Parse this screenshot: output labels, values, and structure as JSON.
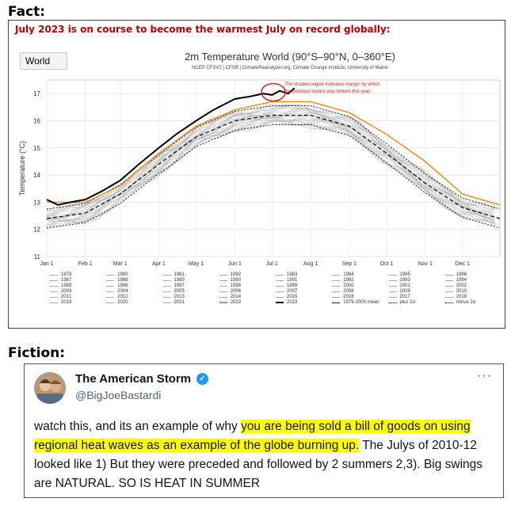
{
  "fact_label": "Fact:",
  "fiction_label": "Fiction:",
  "chart_panel": {
    "headline": "July 2023 is on course to become the warmest July on record globally:",
    "region_select": "World",
    "title": "2m Temperature World (90°S–90°N, 0–360°E)",
    "subtitle": "NCEP CFSV2 | CFSR | ClimateReanalyzer.org, Climate Change Institute, University of Maine",
    "annotation": [
      "The shaded region indicates margin by which",
      "the previous record was broken this year."
    ]
  },
  "chart_data": {
    "type": "line",
    "title": "2m Temperature World (90°S–90°N, 0–360°E)",
    "ylabel": "Temperature (°C)",
    "xlabel": "",
    "ylim": [
      11,
      17.5
    ],
    "yticks": [
      11,
      12,
      13,
      14,
      15,
      16,
      17
    ],
    "x_tick_labels": [
      "Jan 1",
      "Feb 1",
      "Mar 1",
      "Apr 1",
      "May 1",
      "Jun 1",
      "Jul 1",
      "Aug 1",
      "Sep 1",
      "Oct 1",
      "Nov 1",
      "Dec 1"
    ],
    "x_day_of_year": [
      1,
      32,
      60,
      91,
      121,
      152,
      182,
      213,
      244,
      274,
      305,
      335
    ],
    "grid": true,
    "colors": {
      "year2022": "#f28c1d",
      "year2023": "#000000",
      "other_years": "#b5b5b5",
      "annotation": "#e0201b"
    },
    "series": [
      {
        "name": "1979-2000 mean",
        "x": [
          1,
          32,
          60,
          91,
          121,
          152,
          182,
          213,
          244,
          274,
          305,
          335,
          365
        ],
        "y": [
          12.4,
          12.6,
          13.3,
          14.4,
          15.4,
          16.0,
          16.2,
          16.2,
          15.8,
          14.8,
          13.7,
          12.8,
          12.4
        ]
      },
      {
        "name": "plus 2σ",
        "x": [
          1,
          32,
          60,
          91,
          121,
          152,
          182,
          213,
          244,
          274,
          305,
          335,
          365
        ],
        "y": [
          12.75,
          12.95,
          13.65,
          14.75,
          15.75,
          16.35,
          16.55,
          16.55,
          16.15,
          15.15,
          14.05,
          13.15,
          12.75
        ]
      },
      {
        "name": "minus 2σ",
        "x": [
          1,
          32,
          60,
          91,
          121,
          152,
          182,
          213,
          244,
          274,
          305,
          335,
          365
        ],
        "y": [
          12.05,
          12.25,
          12.95,
          14.05,
          15.05,
          15.65,
          15.85,
          15.85,
          15.45,
          14.45,
          13.35,
          12.45,
          12.05
        ]
      },
      {
        "name": "2022",
        "x": [
          1,
          32,
          60,
          91,
          121,
          152,
          182,
          213,
          244,
          274,
          305,
          335,
          365
        ],
        "y": [
          13.0,
          13.0,
          13.6,
          14.8,
          15.8,
          16.4,
          16.7,
          16.7,
          16.3,
          15.5,
          14.5,
          13.3,
          12.9
        ]
      },
      {
        "name": "2023",
        "x": [
          1,
          10,
          20,
          32,
          45,
          60,
          75,
          91,
          105,
          121,
          135,
          152,
          165,
          175,
          182,
          188,
          195,
          200
        ],
        "y": [
          13.1,
          12.9,
          13.0,
          13.1,
          13.4,
          13.8,
          14.4,
          15.0,
          15.5,
          16.0,
          16.4,
          16.8,
          16.9,
          17.0,
          16.95,
          17.1,
          17.0,
          17.2
        ]
      }
    ],
    "legend": [
      "1979",
      "1980",
      "1981",
      "1982",
      "1983",
      "1984",
      "1985",
      "1986",
      "1987",
      "1988",
      "1989",
      "1990",
      "1991",
      "1992",
      "1993",
      "1994",
      "1995",
      "1996",
      "1997",
      "1998",
      "1999",
      "2000",
      "2001",
      "2002",
      "2003",
      "2004",
      "2005",
      "2006",
      "2007",
      "2008",
      "2009",
      "2010",
      "2011",
      "2012",
      "2013",
      "2014",
      "2015",
      "2016",
      "2017",
      "2018",
      "2019",
      "2020",
      "2021",
      "2022",
      "2023",
      "1979-2000 mean",
      "plus 2σ",
      "minus 2σ"
    ],
    "legend_style": {
      "2022": "orange",
      "2023": "black",
      "1979-2000 mean": "dash",
      "plus 2σ": "dot",
      "minus 2σ": "dot"
    }
  },
  "tweet": {
    "author_name": "The American Storm",
    "handle": "@BigJoeBastardi",
    "more_icon": "more-dots-icon",
    "verified_icon": "verified-check-icon",
    "text_before": "watch this, and its an example of why ",
    "text_highlight": "you are being sold a bill of goods on using regional heat waves as an example of the globe burning up.",
    "text_after": " The Julys of 2010-12 looked like 1)  But they were preceded and followed by 2 summers 2,3).  Big swings are NATURAL. SO IS HEAT IN SUMMER"
  }
}
